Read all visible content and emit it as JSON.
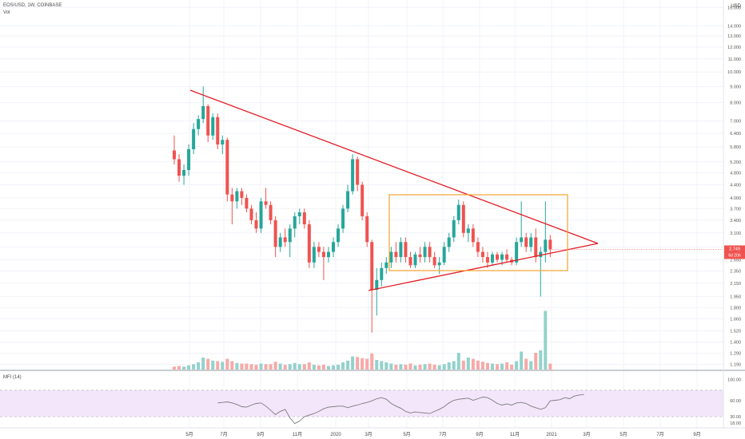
{
  "header": {
    "symbol_line": "EOS/USD, 1W, COINBASE",
    "volume_label": "Vol"
  },
  "mfi_label": "MFI (14)",
  "colors": {
    "up": "#26a69a",
    "down": "#ef5350",
    "vol_up": "#92d2cc",
    "vol_down": "#f7a9a7",
    "trendline": "#e31b23",
    "box": "#f7a431",
    "mfi_band": "#f3e6fb",
    "mfi_line": "#7b7b7b",
    "grid": "#f0f3fa",
    "price_tag": "#ef5350"
  },
  "price_tag": {
    "value": "2.749",
    "countdown": "6d 20h"
  },
  "chart_data": [
    {
      "type": "candlestick",
      "currency_label": "USD",
      "ylabel": "",
      "scale": "log",
      "ylim": [
        1.16,
        16.5
      ],
      "y_ticks": [
        "1.190",
        "1.290",
        "1.400",
        "1.520",
        "1.660",
        "1.800",
        "1.950",
        "2.150",
        "2.350",
        "2.550",
        "2.800",
        "3.100",
        "3.400",
        "3.700",
        "4.000",
        "4.400",
        "4.800",
        "5.200",
        "5.800",
        "6.400",
        "7.000",
        "8.000",
        "9.000",
        "10.000",
        "11.000",
        "12.000",
        "13.000",
        "14.000",
        "16.000"
      ],
      "x_ticks": [
        "5月",
        "7月",
        "9月",
        "11月",
        "2020",
        "3月",
        "5月",
        "7月",
        "9月",
        "11月",
        "2021",
        "3月",
        "5月",
        "7月",
        "9月"
      ],
      "candles": [
        {
          "o": 5.65,
          "h": 6.3,
          "l": 5.1,
          "c": 5.3
        },
        {
          "o": 5.3,
          "h": 5.5,
          "l": 4.5,
          "c": 4.7
        },
        {
          "o": 4.7,
          "h": 5.1,
          "l": 4.4,
          "c": 4.9
        },
        {
          "o": 4.9,
          "h": 5.9,
          "l": 4.7,
          "c": 5.7
        },
        {
          "o": 5.7,
          "h": 6.9,
          "l": 5.5,
          "c": 6.6
        },
        {
          "o": 6.6,
          "h": 7.3,
          "l": 6.3,
          "c": 7.1
        },
        {
          "o": 7.1,
          "h": 9.0,
          "l": 6.9,
          "c": 7.8
        },
        {
          "o": 7.8,
          "h": 7.9,
          "l": 6.0,
          "c": 6.3
        },
        {
          "o": 6.3,
          "h": 7.4,
          "l": 6.1,
          "c": 7.2
        },
        {
          "o": 7.2,
          "h": 7.4,
          "l": 5.7,
          "c": 5.9
        },
        {
          "o": 5.9,
          "h": 6.3,
          "l": 5.5,
          "c": 6.1
        },
        {
          "o": 6.1,
          "h": 6.2,
          "l": 3.9,
          "c": 4.1
        },
        {
          "o": 4.1,
          "h": 4.3,
          "l": 3.3,
          "c": 3.9
        },
        {
          "o": 3.9,
          "h": 4.3,
          "l": 3.7,
          "c": 4.2
        },
        {
          "o": 4.2,
          "h": 4.3,
          "l": 3.8,
          "c": 4.0
        },
        {
          "o": 4.0,
          "h": 4.1,
          "l": 3.6,
          "c": 3.7
        },
        {
          "o": 3.7,
          "h": 3.8,
          "l": 3.3,
          "c": 3.4
        },
        {
          "o": 3.4,
          "h": 3.6,
          "l": 3.1,
          "c": 3.2
        },
        {
          "o": 3.2,
          "h": 4.0,
          "l": 3.1,
          "c": 3.9
        },
        {
          "o": 3.9,
          "h": 4.3,
          "l": 3.7,
          "c": 3.8
        },
        {
          "o": 3.8,
          "h": 3.9,
          "l": 3.3,
          "c": 3.4
        },
        {
          "o": 3.4,
          "h": 3.5,
          "l": 2.6,
          "c": 2.8
        },
        {
          "o": 2.8,
          "h": 3.1,
          "l": 2.7,
          "c": 3.0
        },
        {
          "o": 3.0,
          "h": 3.2,
          "l": 2.8,
          "c": 2.9
        },
        {
          "o": 2.9,
          "h": 3.3,
          "l": 2.6,
          "c": 3.2
        },
        {
          "o": 3.2,
          "h": 3.6,
          "l": 3.0,
          "c": 3.5
        },
        {
          "o": 3.5,
          "h": 3.7,
          "l": 3.3,
          "c": 3.6
        },
        {
          "o": 3.6,
          "h": 3.7,
          "l": 3.2,
          "c": 3.3
        },
        {
          "o": 3.3,
          "h": 3.4,
          "l": 2.4,
          "c": 2.5
        },
        {
          "o": 2.5,
          "h": 2.9,
          "l": 2.4,
          "c": 2.8
        },
        {
          "o": 2.8,
          "h": 2.9,
          "l": 2.6,
          "c": 2.7
        },
        {
          "o": 2.7,
          "h": 2.8,
          "l": 2.2,
          "c": 2.6
        },
        {
          "o": 2.6,
          "h": 2.8,
          "l": 2.5,
          "c": 2.7
        },
        {
          "o": 2.7,
          "h": 3.0,
          "l": 2.6,
          "c": 2.9
        },
        {
          "o": 2.9,
          "h": 3.3,
          "l": 2.8,
          "c": 3.2
        },
        {
          "o": 3.2,
          "h": 3.8,
          "l": 3.1,
          "c": 3.7
        },
        {
          "o": 3.7,
          "h": 4.4,
          "l": 3.6,
          "c": 4.2
        },
        {
          "o": 4.2,
          "h": 5.5,
          "l": 4.1,
          "c": 5.3
        },
        {
          "o": 5.3,
          "h": 5.4,
          "l": 4.2,
          "c": 4.4
        },
        {
          "o": 4.4,
          "h": 4.5,
          "l": 3.4,
          "c": 3.5
        },
        {
          "o": 3.5,
          "h": 3.6,
          "l": 2.8,
          "c": 2.9
        },
        {
          "o": 2.9,
          "h": 2.95,
          "l": 1.5,
          "c": 2.05
        },
        {
          "o": 2.05,
          "h": 2.4,
          "l": 1.7,
          "c": 2.2
        },
        {
          "o": 2.2,
          "h": 2.5,
          "l": 2.1,
          "c": 2.4
        },
        {
          "o": 2.4,
          "h": 2.6,
          "l": 2.3,
          "c": 2.5
        },
        {
          "o": 2.5,
          "h": 2.8,
          "l": 2.4,
          "c": 2.7
        },
        {
          "o": 2.7,
          "h": 2.9,
          "l": 2.5,
          "c": 2.6
        },
        {
          "o": 2.6,
          "h": 3.0,
          "l": 2.5,
          "c": 2.9
        },
        {
          "o": 2.9,
          "h": 3.0,
          "l": 2.5,
          "c": 2.6
        },
        {
          "o": 2.6,
          "h": 2.7,
          "l": 2.4,
          "c": 2.45
        },
        {
          "o": 2.45,
          "h": 2.7,
          "l": 2.4,
          "c": 2.65
        },
        {
          "o": 2.65,
          "h": 2.8,
          "l": 2.5,
          "c": 2.6
        },
        {
          "o": 2.6,
          "h": 2.9,
          "l": 2.5,
          "c": 2.8
        },
        {
          "o": 2.8,
          "h": 2.9,
          "l": 2.5,
          "c": 2.6
        },
        {
          "o": 2.6,
          "h": 2.7,
          "l": 2.4,
          "c": 2.45
        },
        {
          "o": 2.45,
          "h": 2.6,
          "l": 2.3,
          "c": 2.5
        },
        {
          "o": 2.5,
          "h": 2.9,
          "l": 2.45,
          "c": 2.8
        },
        {
          "o": 2.8,
          "h": 3.1,
          "l": 2.7,
          "c": 3.0
        },
        {
          "o": 3.0,
          "h": 3.5,
          "l": 2.9,
          "c": 3.4
        },
        {
          "o": 3.4,
          "h": 3.95,
          "l": 3.3,
          "c": 3.8
        },
        {
          "o": 3.8,
          "h": 3.9,
          "l": 3.0,
          "c": 3.1
        },
        {
          "o": 3.1,
          "h": 3.3,
          "l": 2.9,
          "c": 3.2
        },
        {
          "o": 3.2,
          "h": 3.3,
          "l": 2.8,
          "c": 2.9
        },
        {
          "o": 2.9,
          "h": 3.0,
          "l": 2.6,
          "c": 2.7
        },
        {
          "o": 2.7,
          "h": 2.8,
          "l": 2.5,
          "c": 2.6
        },
        {
          "o": 2.6,
          "h": 2.7,
          "l": 2.4,
          "c": 2.5
        },
        {
          "o": 2.5,
          "h": 2.7,
          "l": 2.45,
          "c": 2.65
        },
        {
          "o": 2.65,
          "h": 2.7,
          "l": 2.5,
          "c": 2.55
        },
        {
          "o": 2.55,
          "h": 2.7,
          "l": 2.45,
          "c": 2.65
        },
        {
          "o": 2.65,
          "h": 2.75,
          "l": 2.5,
          "c": 2.55
        },
        {
          "o": 2.55,
          "h": 2.6,
          "l": 2.45,
          "c": 2.5
        },
        {
          "o": 2.5,
          "h": 3.0,
          "l": 2.45,
          "c": 2.9
        },
        {
          "o": 2.9,
          "h": 3.9,
          "l": 2.8,
          "c": 3.0
        },
        {
          "o": 3.0,
          "h": 3.1,
          "l": 2.7,
          "c": 2.8
        },
        {
          "o": 2.8,
          "h": 3.1,
          "l": 2.7,
          "c": 3.0
        },
        {
          "o": 3.0,
          "h": 3.2,
          "l": 2.5,
          "c": 2.6
        },
        {
          "o": 2.6,
          "h": 2.8,
          "l": 1.95,
          "c": 2.7
        },
        {
          "o": 2.7,
          "h": 3.9,
          "l": 2.5,
          "c": 2.95
        },
        {
          "o": 2.95,
          "h": 3.05,
          "l": 2.6,
          "c": 2.749
        }
      ],
      "volume_relative": [
        0.05,
        0.06,
        0.05,
        0.07,
        0.09,
        0.12,
        0.2,
        0.18,
        0.15,
        0.14,
        0.13,
        0.18,
        0.14,
        0.11,
        0.1,
        0.1,
        0.09,
        0.08,
        0.1,
        0.09,
        0.09,
        0.13,
        0.1,
        0.08,
        0.09,
        0.11,
        0.09,
        0.09,
        0.12,
        0.08,
        0.07,
        0.08,
        0.06,
        0.07,
        0.08,
        0.12,
        0.15,
        0.22,
        0.21,
        0.19,
        0.18,
        0.27,
        0.16,
        0.14,
        0.12,
        0.1,
        0.08,
        0.09,
        0.08,
        0.1,
        0.07,
        0.08,
        0.09,
        0.1,
        0.08,
        0.07,
        0.09,
        0.12,
        0.14,
        0.28,
        0.15,
        0.2,
        0.18,
        0.15,
        0.13,
        0.11,
        0.1,
        0.09,
        0.1,
        0.12,
        0.08,
        0.14,
        0.3,
        0.18,
        0.14,
        0.28,
        0.32,
        0.98,
        0.1
      ]
    },
    {
      "type": "line",
      "name": "MFI (14)",
      "ylim": [
        12,
        110
      ],
      "y_ticks": [
        "100.00",
        "60.00",
        "30.00",
        "18.00"
      ],
      "band": [
        30,
        80
      ],
      "start_candle": 9,
      "values": [
        56,
        57,
        58,
        56,
        53,
        49,
        48,
        52,
        55,
        56,
        50,
        42,
        34,
        40,
        44,
        28,
        17,
        22,
        30,
        33,
        36,
        40,
        45,
        48,
        49,
        50,
        50,
        47,
        50,
        52,
        55,
        57,
        60,
        64,
        66,
        63,
        55,
        50,
        46,
        40,
        37,
        39,
        38,
        37,
        36,
        40,
        44,
        49,
        56,
        61,
        63,
        64,
        65,
        61,
        64,
        67,
        66,
        61,
        55,
        52,
        54,
        52,
        56,
        57,
        55,
        50,
        47,
        44,
        47,
        60,
        61,
        62,
        66,
        64,
        69,
        71,
        72
      ]
    }
  ]
}
